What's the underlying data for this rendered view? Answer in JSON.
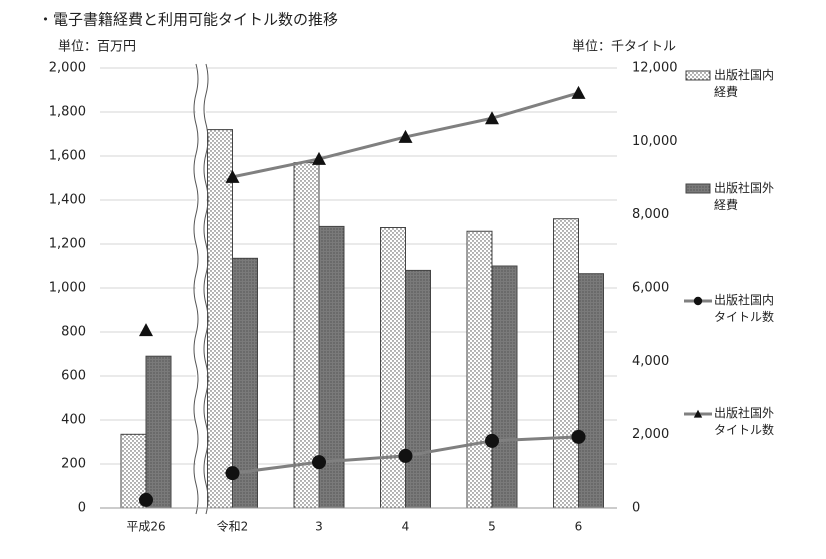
{
  "chart_data": {
    "type": "bar",
    "title": "・電子書籍経費と利用可能タイトル数の推移",
    "y_label": "単位：百万円",
    "y2_label": "単位：千タイトル",
    "categories": [
      "平成26",
      "令和2",
      "3",
      "4",
      "5",
      "6"
    ],
    "series": [
      {
        "name": "出版社国内経費",
        "type": "bar",
        "color": "#ffffff",
        "values": [
          335,
          1720,
          1570,
          1275,
          1258,
          1315
        ]
      },
      {
        "name": "出版社国外経費",
        "type": "bar",
        "color": "#7a7a7a",
        "values": [
          690,
          1135,
          1280,
          1080,
          1100,
          1065
        ]
      },
      {
        "name": "出版社国内タイトル数",
        "type": "line",
        "axis": "y2",
        "marker": "circle",
        "color": "#808080",
        "values": [
          220,
          950,
          1250,
          1420,
          1830,
          1940
        ]
      },
      {
        "name": "出版社国外タイトル数",
        "type": "line",
        "axis": "y2",
        "marker": "triangle",
        "color": "#808080",
        "values": [
          4850,
          9030,
          9520,
          10120,
          10630,
          11320
        ]
      }
    ],
    "ylim": [
      0,
      2000
    ],
    "yticks": [
      0,
      200,
      400,
      600,
      800,
      {
        "value": 1000,
        "label": "1,000"
      },
      {
        "value": 1200,
        "label": "1,200"
      },
      {
        "value": 1400,
        "label": "1,400"
      },
      {
        "value": 1600,
        "label": "1,600"
      },
      {
        "value": 1800,
        "label": "1,800"
      },
      {
        "value": 2000,
        "label": "2,000"
      }
    ],
    "y2lim": [
      0,
      12000
    ],
    "y2ticks": [
      0,
      {
        "value": 2000,
        "label": "2,000"
      },
      {
        "value": 4000,
        "label": "4,000"
      },
      {
        "value": 6000,
        "label": "6,000"
      },
      {
        "value": 8000,
        "label": "8,000"
      },
      {
        "value": 10000,
        "label": "10,000"
      },
      {
        "value": 12000,
        "label": "12,000"
      }
    ],
    "grid": true
  }
}
